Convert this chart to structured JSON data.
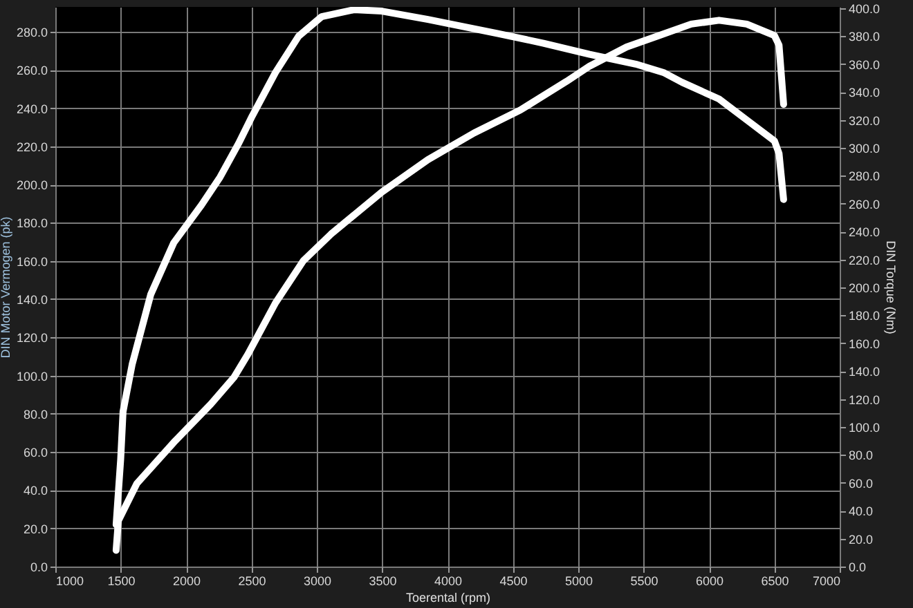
{
  "chart_data": {
    "type": "line",
    "xlabel": "Toerental (rpm)",
    "ylabel": "DIN Motor Vermogen (pk)",
    "y2label": "DIN Torque (Nm)",
    "xlim": [
      1000,
      7000
    ],
    "xticks": [
      1000,
      1500,
      2000,
      2500,
      3000,
      3500,
      4000,
      4500,
      5000,
      5500,
      6000,
      6500,
      7000
    ],
    "ylim": [
      0,
      293
    ],
    "yticks": [
      {
        "value": 0,
        "label": "0.0"
      },
      {
        "value": 20,
        "label": "20.0"
      },
      {
        "value": 40,
        "label": "40.0"
      },
      {
        "value": 60,
        "label": "60.0"
      },
      {
        "value": 80,
        "label": "80.0"
      },
      {
        "value": 100,
        "label": "100.0"
      },
      {
        "value": 120,
        "label": "120.0"
      },
      {
        "value": 140,
        "label": "140.0"
      },
      {
        "value": 160,
        "label": "160.0"
      },
      {
        "value": 180,
        "label": "180.0"
      },
      {
        "value": 200,
        "label": "200.0"
      },
      {
        "value": 220,
        "label": "220.0"
      },
      {
        "value": 240,
        "label": "240.0"
      },
      {
        "value": 260,
        "label": "260.0"
      },
      {
        "value": 280,
        "label": "280.0"
      }
    ],
    "y2lim": [
      0,
      401
    ],
    "y2ticks": [
      {
        "value": 0,
        "label": "0.0"
      },
      {
        "value": 20,
        "label": "20.0"
      },
      {
        "value": 40,
        "label": "40.0"
      },
      {
        "value": 60,
        "label": "60.0"
      },
      {
        "value": 80,
        "label": "80.0"
      },
      {
        "value": 100,
        "label": "100.0"
      },
      {
        "value": 120,
        "label": "120.0"
      },
      {
        "value": 140,
        "label": "140.0"
      },
      {
        "value": 160,
        "label": "160.0"
      },
      {
        "value": 180,
        "label": "180.0"
      },
      {
        "value": 200,
        "label": "200.0"
      },
      {
        "value": 220,
        "label": "220.0"
      },
      {
        "value": 240,
        "label": "240.0"
      },
      {
        "value": 260,
        "label": "260.0"
      },
      {
        "value": 280,
        "label": "280.0"
      },
      {
        "value": 300,
        "label": "300.0"
      },
      {
        "value": 320,
        "label": "320.0"
      },
      {
        "value": 340,
        "label": "340.0"
      },
      {
        "value": 360,
        "label": "360.0"
      },
      {
        "value": 380,
        "label": "380.0"
      },
      {
        "value": 400,
        "label": "400.0"
      }
    ],
    "grid": true,
    "marker": "none",
    "line_style": "solid",
    "series": [
      {
        "color": "#ffffff",
        "x": [
          1465,
          1482,
          1624,
          1906,
          2189,
          2366,
          2472,
          2684,
          2896,
          3108,
          3497,
          3850,
          4203,
          4557,
          4910,
          5087,
          5370,
          5617,
          5864,
          6077,
          6289,
          6501,
          6536,
          6571
        ],
        "values": [
          8.5,
          24,
          43.5,
          65,
          85,
          99,
          111,
          138,
          160,
          174,
          196,
          213,
          227,
          239,
          254,
          262,
          272,
          278,
          284,
          286,
          284,
          278,
          273,
          242
        ]
      },
      {
        "color": "#ffffff",
        "axis": "y2",
        "x": [
          1465,
          1500,
          1518,
          1588,
          1730,
          1906,
          2118,
          2260,
          2401,
          2507,
          2684,
          2861,
          3037,
          3285,
          3497,
          3850,
          4380,
          4734,
          5087,
          5440,
          5652,
          5794,
          6077,
          6289,
          6501,
          6536,
          6571
        ],
        "values": [
          30,
          77,
          111,
          145,
          195,
          232,
          259,
          279,
          303,
          323,
          354,
          380,
          394,
          399,
          398,
          392,
          382,
          375,
          367,
          360,
          354,
          347,
          335,
          320,
          305,
          296,
          263
        ]
      }
    ]
  }
}
